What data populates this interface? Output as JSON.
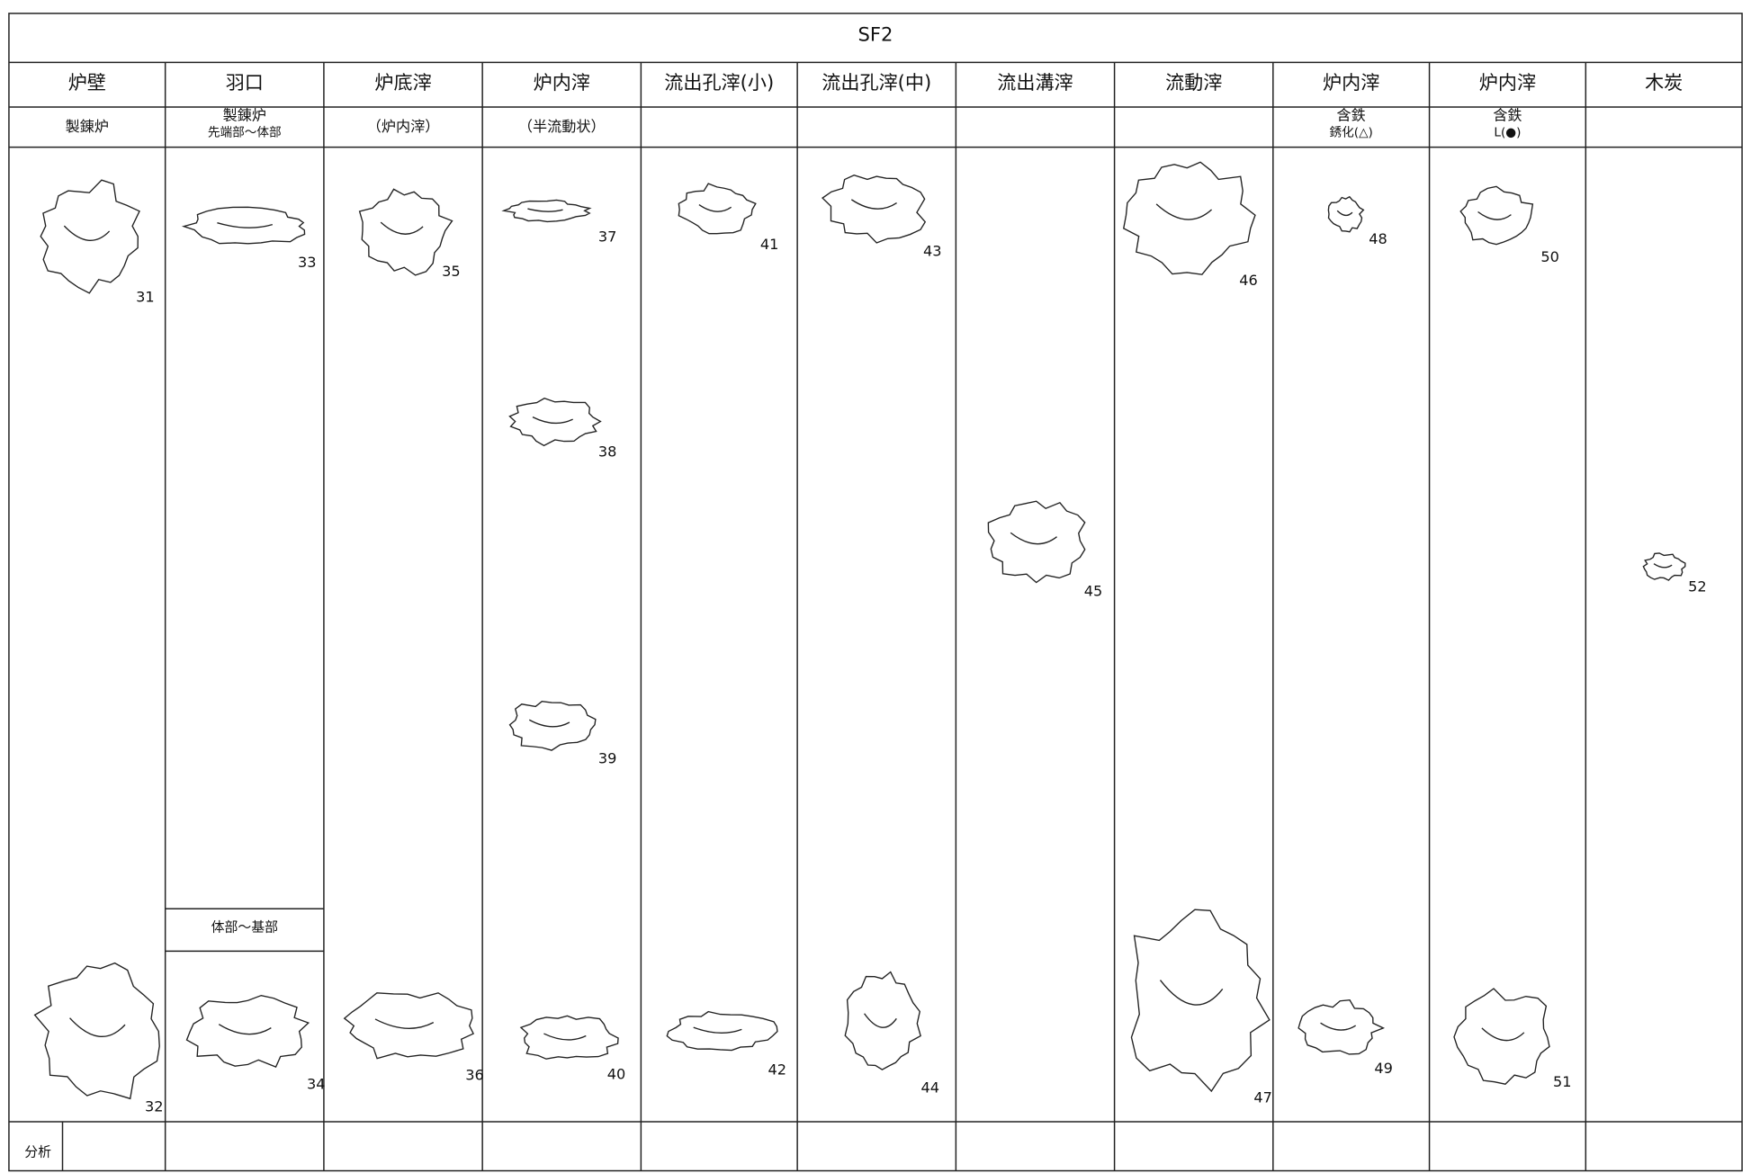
{
  "title": "SF2",
  "columns": [
    {
      "name": "炉壁",
      "note": [
        "製錬炉"
      ]
    },
    {
      "name": "羽口",
      "note": [
        "製錬炉",
        "先端部～体部"
      ]
    },
    {
      "name": "炉底滓",
      "note": [
        "（炉内滓）"
      ]
    },
    {
      "name": "炉内滓",
      "note": [
        "（半流動状）"
      ]
    },
    {
      "name": "流出孔滓(小)"
    },
    {
      "name": "流出孔滓(中)"
    },
    {
      "name": "流出溝滓"
    },
    {
      "name": "流動滓"
    },
    {
      "name": "炉内滓",
      "note": [
        "含鉄",
        "銹化(△)"
      ]
    },
    {
      "name": "炉内滓",
      "note": [
        "含鉄",
        "L(●)"
      ]
    },
    {
      "name": "木炭"
    }
  ],
  "sub_label": "体部～基部",
  "items": [
    "31",
    "32",
    "33",
    "34",
    "35",
    "36",
    "37",
    "38",
    "39",
    "40",
    "41",
    "42",
    "43",
    "44",
    "45",
    "46",
    "47",
    "48",
    "49",
    "50",
    "51",
    "52"
  ],
  "footer_label": "分析"
}
